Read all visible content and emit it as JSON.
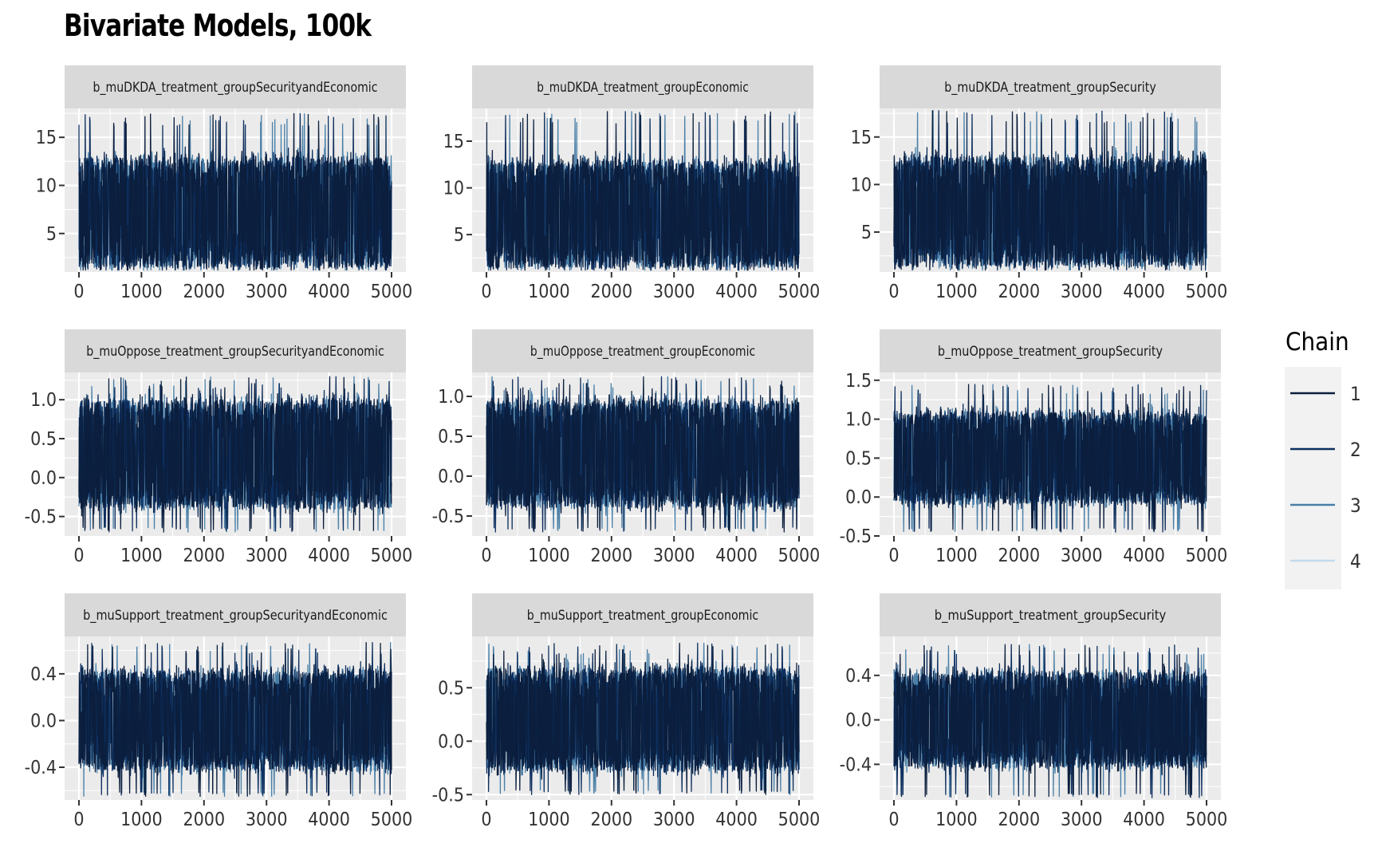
{
  "title": "Bivariate Models, 100k",
  "legend": {
    "title": "Chain",
    "entries": [
      "1",
      "2",
      "3",
      "4"
    ],
    "colors": [
      "#0b1e3d",
      "#0d2f5e",
      "#4a7fa7",
      "#c3d9ea"
    ]
  },
  "colors": {
    "panel_bg": "#ebebeb",
    "grid": "#ffffff",
    "strip_bg": "#d9d9d9",
    "legend_bg": "#f2f2f2",
    "axis_text": "#333333"
  },
  "chart_data": [
    {
      "type": "line",
      "title": "b_muDKDA_treatment_groupSecurityandEconomic",
      "xlim": [
        0,
        5000
      ],
      "x_ticks": [
        0,
        1000,
        2000,
        3000,
        4000,
        5000
      ],
      "ylim": [
        1,
        18
      ],
      "y_ticks": [
        5,
        10,
        15
      ],
      "y_tick_labels": [
        "5",
        "10",
        "15"
      ],
      "center": 6,
      "band": [
        1.8,
        12.5
      ],
      "spike_top": 17.5,
      "spike_bottom": 1.2
    },
    {
      "type": "line",
      "title": "b_muDKDA_treatment_groupEconomic",
      "xlim": [
        0,
        5000
      ],
      "x_ticks": [
        0,
        1000,
        2000,
        3000,
        4000,
        5000
      ],
      "ylim": [
        1,
        18.5
      ],
      "y_ticks": [
        5,
        10,
        15
      ],
      "y_tick_labels": [
        "5",
        "10",
        "15"
      ],
      "center": 6,
      "band": [
        1.8,
        12.5
      ],
      "spike_top": 18.2,
      "spike_bottom": 1.2
    },
    {
      "type": "line",
      "title": "b_muDKDA_treatment_groupSecurity",
      "xlim": [
        0,
        5000
      ],
      "x_ticks": [
        0,
        1000,
        2000,
        3000,
        4000,
        5000
      ],
      "ylim": [
        0.8,
        18
      ],
      "y_ticks": [
        5,
        10,
        15
      ],
      "y_tick_labels": [
        "5",
        "10",
        "15"
      ],
      "center": 6,
      "band": [
        1.8,
        12.5
      ],
      "spike_top": 17.8,
      "spike_bottom": 1.0
    },
    {
      "type": "line",
      "title": "b_muOppose_treatment_groupSecurityandEconomic",
      "xlim": [
        0,
        5000
      ],
      "x_ticks": [
        0,
        1000,
        2000,
        3000,
        4000,
        5000
      ],
      "ylim": [
        -0.75,
        1.35
      ],
      "y_ticks": [
        -0.5,
        0.0,
        0.5,
        1.0
      ],
      "y_tick_labels": [
        "-0.5",
        "0.0",
        "0.5",
        "1.0"
      ],
      "center": 0.3,
      "band": [
        -0.35,
        0.95
      ],
      "spike_top": 1.3,
      "spike_bottom": -0.7
    },
    {
      "type": "line",
      "title": "b_muOppose_treatment_groupEconomic",
      "xlim": [
        0,
        5000
      ],
      "x_ticks": [
        0,
        1000,
        2000,
        3000,
        4000,
        5000
      ],
      "ylim": [
        -0.75,
        1.3
      ],
      "y_ticks": [
        -0.5,
        0.0,
        0.5,
        1.0
      ],
      "y_tick_labels": [
        "-0.5",
        "0.0",
        "0.5",
        "1.0"
      ],
      "center": 0.25,
      "band": [
        -0.35,
        0.9
      ],
      "spike_top": 1.25,
      "spike_bottom": -0.7
    },
    {
      "type": "line",
      "title": "b_muOppose_treatment_groupSecurity",
      "xlim": [
        0,
        5000
      ],
      "x_ticks": [
        0,
        1000,
        2000,
        3000,
        4000,
        5000
      ],
      "ylim": [
        -0.5,
        1.6
      ],
      "y_ticks": [
        -0.5,
        0.0,
        0.5,
        1.0,
        1.5
      ],
      "y_tick_labels": [
        "-0.5",
        "0.0",
        "0.5",
        "1.0",
        "1.5"
      ],
      "center": 0.5,
      "band": [
        -0.05,
        1.05
      ],
      "spike_top": 1.45,
      "spike_bottom": -0.45
    },
    {
      "type": "line",
      "title": "b_muSupport_treatment_groupSecurityandEconomic",
      "xlim": [
        0,
        5000
      ],
      "x_ticks": [
        0,
        1000,
        2000,
        3000,
        4000,
        5000
      ],
      "ylim": [
        -0.68,
        0.72
      ],
      "y_ticks": [
        -0.4,
        0.0,
        0.4
      ],
      "y_tick_labels": [
        "-0.4",
        "0.0",
        "0.4"
      ],
      "center": 0.0,
      "band": [
        -0.4,
        0.4
      ],
      "spike_top": 0.67,
      "spike_bottom": -0.65
    },
    {
      "type": "line",
      "title": "b_muSupport_treatment_groupEconomic",
      "xlim": [
        0,
        5000
      ],
      "x_ticks": [
        0,
        1000,
        2000,
        3000,
        4000,
        5000
      ],
      "ylim": [
        -0.55,
        0.98
      ],
      "y_ticks": [
        -0.5,
        0.0,
        0.5
      ],
      "y_tick_labels": [
        "-0.5",
        "0.0",
        "0.5"
      ],
      "center": 0.2,
      "band": [
        -0.25,
        0.65
      ],
      "spike_top": 0.92,
      "spike_bottom": -0.5
    },
    {
      "type": "line",
      "title": "b_muSupport_treatment_groupSecurity",
      "xlim": [
        0,
        5000
      ],
      "x_ticks": [
        0,
        1000,
        2000,
        3000,
        4000,
        5000
      ],
      "ylim": [
        -0.72,
        0.75
      ],
      "y_ticks": [
        -0.4,
        0.0,
        0.4
      ],
      "y_tick_labels": [
        "-0.4",
        "0.0",
        "0.4"
      ],
      "center": 0.0,
      "band": [
        -0.4,
        0.4
      ],
      "spike_top": 0.68,
      "spike_bottom": -0.7
    }
  ]
}
